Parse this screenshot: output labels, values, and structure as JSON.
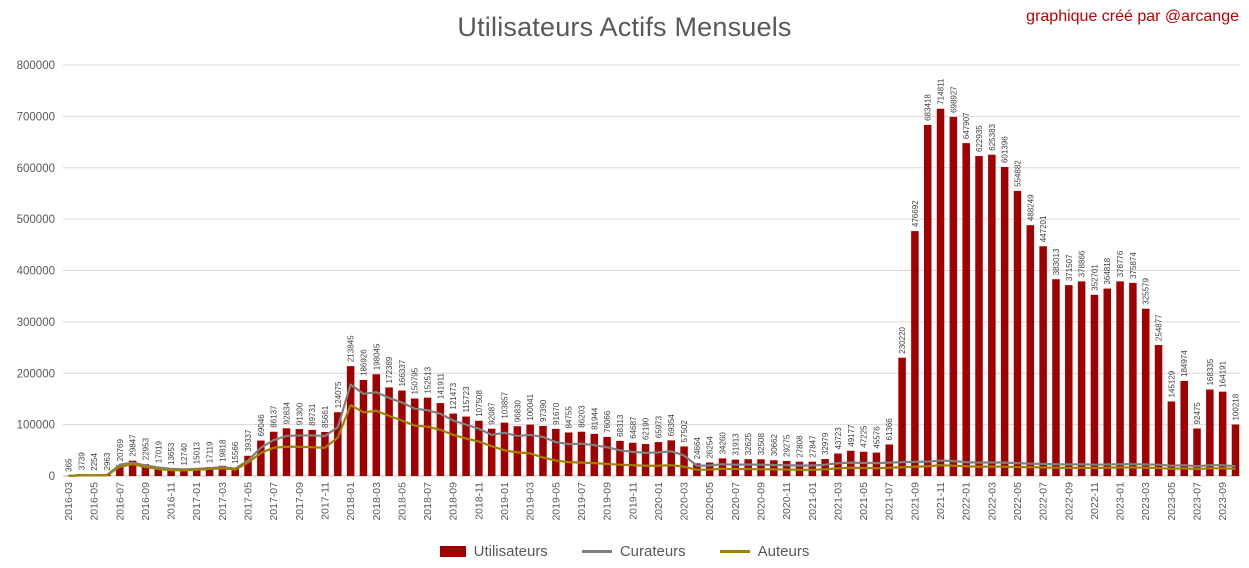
{
  "header": {
    "title": "Utilisateurs Actifs Mensuels",
    "credit": "graphique créé par @arcange"
  },
  "colors": {
    "bar": "#A00000",
    "curators_line": "#808080",
    "authors_line": "#A08000",
    "credit_text": "#C00000",
    "title_text": "#595959",
    "axis_text": "#595959",
    "bar_label_text": "#404040",
    "gridline": "#D9D9D9",
    "axis_line": "#BFBFBF"
  },
  "y_axis": {
    "ticks": [
      "0",
      "100000",
      "200000",
      "300000",
      "400000",
      "500000",
      "600000",
      "700000",
      "800000"
    ]
  },
  "chart_data": {
    "type": "bar",
    "title": "Utilisateurs Actifs Mensuels",
    "xlabel": "",
    "ylabel": "",
    "ylim": [
      0,
      800000
    ],
    "ytick_step": 100000,
    "grid": true,
    "legend_position": "bottom",
    "x_tick_every": 2,
    "bar_value_labels_shown": true,
    "categories": [
      "2016-03",
      "2016-04",
      "2016-05",
      "2016-06",
      "2016-07",
      "2016-08",
      "2016-09",
      "2016-10",
      "2016-11",
      "2016-12",
      "2017-01",
      "2017-02",
      "2017-03",
      "2017-04",
      "2017-05",
      "2017-06",
      "2017-07",
      "2017-08",
      "2017-09",
      "2017-10",
      "2017-11",
      "2017-12",
      "2018-01",
      "2018-02",
      "2018-03",
      "2018-04",
      "2018-05",
      "2018-06",
      "2018-07",
      "2018-08",
      "2018-09",
      "2018-10",
      "2018-11",
      "2018-12",
      "2019-01",
      "2019-02",
      "2019-03",
      "2019-04",
      "2019-05",
      "2019-06",
      "2019-07",
      "2019-08",
      "2019-09",
      "2019-10",
      "2019-11",
      "2019-12",
      "2020-01",
      "2020-02",
      "2020-03",
      "2020-04",
      "2020-05",
      "2020-06",
      "2020-07",
      "2020-08",
      "2020-09",
      "2020-10",
      "2020-11",
      "2020-12",
      "2021-01",
      "2021-02",
      "2021-03",
      "2021-04",
      "2021-05",
      "2021-06",
      "2021-07",
      "2021-08",
      "2021-09",
      "2021-10",
      "2021-11",
      "2021-12",
      "2022-01",
      "2022-02",
      "2022-03",
      "2022-04",
      "2022-05",
      "2022-06",
      "2022-07",
      "2022-08",
      "2022-09",
      "2022-10",
      "2022-11",
      "2022-12",
      "2023-01",
      "2023-02",
      "2023-03",
      "2023-04",
      "2023-05",
      "2023-06",
      "2023-07",
      "2023-08",
      "2023-09",
      "2023-10"
    ],
    "series": [
      {
        "name": "Utilisateurs",
        "type": "bar",
        "color": "#A00000",
        "values": [
          365,
          3739,
          2254,
          2963,
          20769,
          29847,
          22953,
          17019,
          13653,
          12740,
          15013,
          17119,
          19818,
          15566,
          39337,
          69046,
          86137,
          92834,
          91300,
          89731,
          85661,
          124075,
          213845,
          186926,
          198045,
          172389,
          166337,
          150795,
          152513,
          141911,
          121473,
          115723,
          107508,
          92087,
          103857,
          96830,
          100041,
          97390,
          91670,
          84755,
          86203,
          81944,
          76066,
          68313,
          64687,
          62190,
          65973,
          69354,
          57502,
          24664,
          26254,
          34260,
          31913,
          32625,
          32508,
          30662,
          29275,
          27808,
          27847,
          32979,
          43723,
          49177,
          47225,
          45576,
          61366,
          230220,
          476692,
          683418,
          714811,
          698927,
          647907,
          622935,
          625383,
          601396,
          554882,
          488249,
          447201,
          383013,
          371507,
          378866,
          352701,
          364818,
          378776,
          375874,
          325579,
          254877,
          145129,
          184974,
          92475,
          168335,
          164191,
          100218
        ]
      },
      {
        "name": "Curateurs",
        "type": "line",
        "color": "#808080",
        "estimated": true,
        "values": [
          300,
          1800,
          1500,
          1900,
          22000,
          26000,
          20500,
          16500,
          14000,
          13000,
          14000,
          15500,
          17000,
          14500,
          30000,
          55000,
          70000,
          78000,
          79000,
          79000,
          78000,
          95000,
          178000,
          160000,
          163000,
          152000,
          143000,
          131000,
          128000,
          121000,
          108000,
          100000,
          92000,
          80000,
          84000,
          78000,
          80000,
          76000,
          66000,
          62000,
          63000,
          60000,
          56000,
          50000,
          47000,
          45000,
          46000,
          48000,
          40000,
          20000,
          20500,
          23000,
          22000,
          22500,
          22000,
          21500,
          21000,
          20500,
          20500,
          22000,
          25000,
          26000,
          25500,
          25000,
          26000,
          27000,
          27500,
          28000,
          30000,
          29000,
          27000,
          26000,
          26500,
          26000,
          25000,
          24000,
          23500,
          23000,
          22500,
          23000,
          22000,
          22500,
          23000,
          23000,
          22500,
          22000,
          20000,
          21000,
          19000,
          21000,
          21000,
          19000
        ]
      },
      {
        "name": "Auteurs",
        "type": "line",
        "color": "#A08000",
        "estimated": true,
        "values": [
          200,
          1200,
          1100,
          1400,
          18000,
          23000,
          17500,
          13500,
          11500,
          11000,
          12000,
          13500,
          15000,
          12500,
          26000,
          45000,
          55000,
          57000,
          57000,
          56000,
          55000,
          75000,
          138000,
          124000,
          127000,
          117000,
          108000,
          98000,
          96000,
          90000,
          80000,
          73000,
          67000,
          58000,
          50000,
          46000,
          44000,
          36000,
          30000,
          27000,
          26000,
          25000,
          23500,
          22000,
          21000,
          20000,
          20000,
          21000,
          18000,
          12000,
          12500,
          14000,
          13500,
          13500,
          13000,
          13000,
          12500,
          12000,
          12000,
          13000,
          15000,
          16000,
          15500,
          15000,
          16000,
          17000,
          18000,
          19000,
          21000,
          20000,
          19000,
          18000,
          18500,
          18000,
          17500,
          17000,
          16500,
          16000,
          15500,
          16000,
          15500,
          16000,
          16500,
          16500,
          16000,
          15500,
          14000,
          15000,
          13500,
          15000,
          15000,
          14000
        ]
      }
    ]
  }
}
